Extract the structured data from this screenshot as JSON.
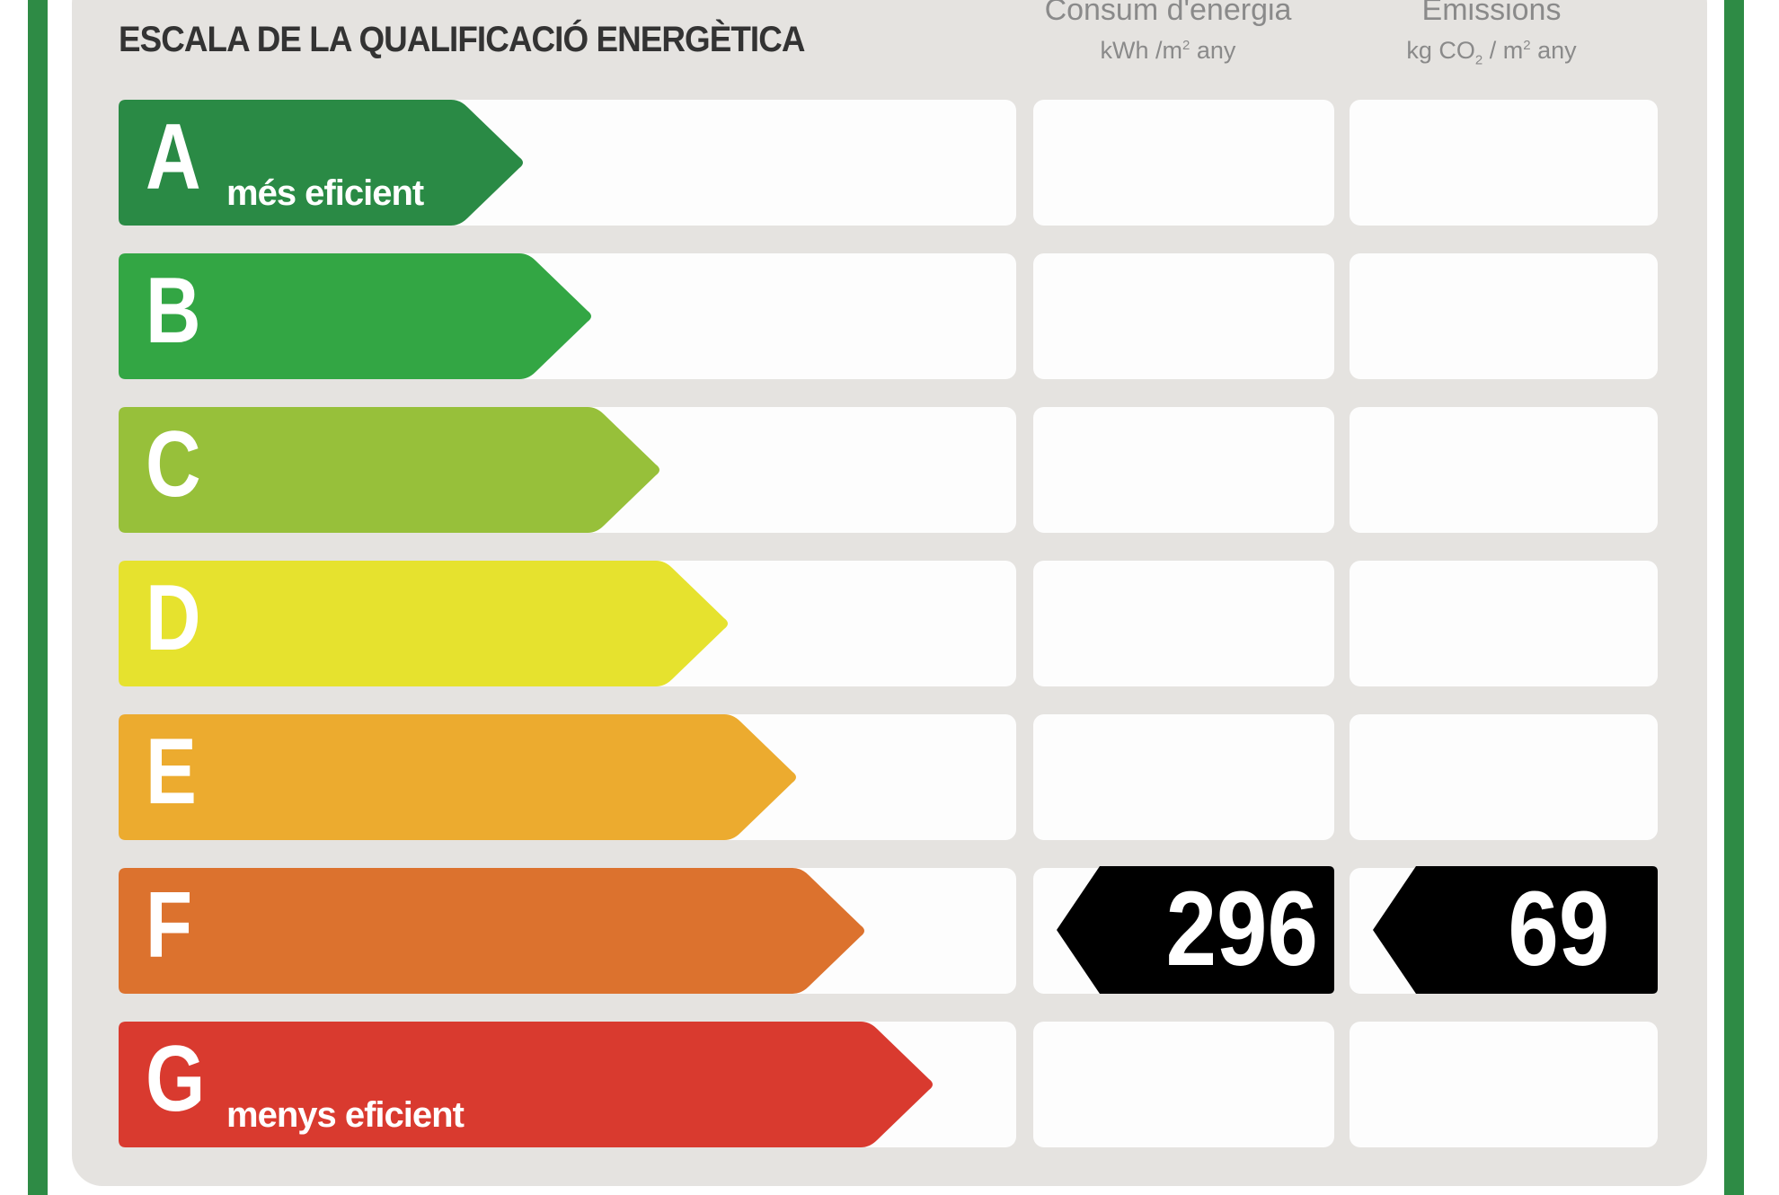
{
  "header": {
    "title": "ESCALA DE LA QUALIFICACIÓ ENERGÈTICA",
    "energy_col": {
      "label": "Consum d'energia",
      "unit_pre": "kWh /m",
      "unit_sup": "2",
      "unit_post": " any"
    },
    "emissions_col": {
      "label": "Emissions",
      "unit_pre": "kg CO",
      "unit_sub": "2",
      "unit_mid": " / m",
      "unit_sup": "2",
      "unit_post": " any"
    }
  },
  "scale": [
    {
      "letter": "A",
      "caption": "més eficient",
      "color": "#2a8a45"
    },
    {
      "letter": "B",
      "caption": "",
      "color": "#33a644"
    },
    {
      "letter": "C",
      "caption": "",
      "color": "#97c03a"
    },
    {
      "letter": "D",
      "caption": "",
      "color": "#e6e22e"
    },
    {
      "letter": "E",
      "caption": "",
      "color": "#ecab2f"
    },
    {
      "letter": "F",
      "caption": "",
      "color": "#dc722e"
    },
    {
      "letter": "G",
      "caption": "menys eficient",
      "color": "#d93a2f"
    }
  ],
  "rating": {
    "class": "F",
    "energy_value": "296",
    "emissions_value": "69",
    "marker_color": "#000000"
  }
}
